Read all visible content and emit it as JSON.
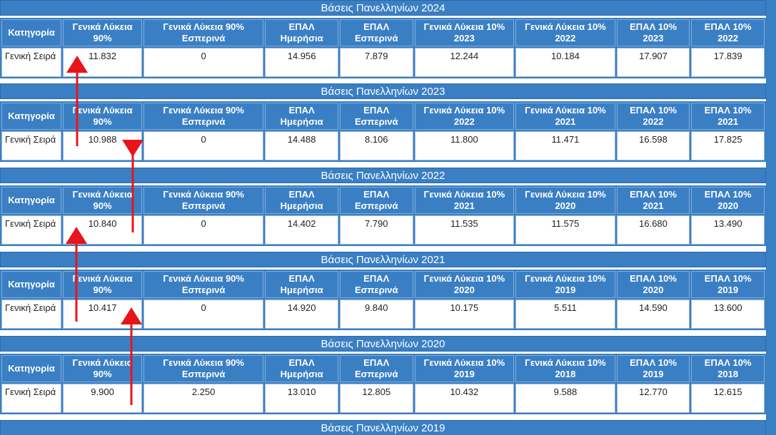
{
  "sections": [
    {
      "title": "Βάσεις Πανελληνίων 2024",
      "headers": [
        "Κατηγορία",
        "Γενικά Λύκεια 90%",
        "Γενικά Λύκεια 90% Εσπερινά",
        "ΕΠΑΛ Ημερήσια",
        "ΕΠΑΛ Εσπερινά",
        "Γενικά Λύκεια 10% 2023",
        "Γενικά Λύκεια 10% 2022",
        "ΕΠΑΛ 10% 2023",
        "ΕΠΑΛ 10% 2022"
      ],
      "row": [
        "Γενική Σειρά",
        "11.832",
        "0",
        "14.956",
        "7.879",
        "12.244",
        "10.184",
        "17.907",
        "17.839"
      ]
    },
    {
      "title": "Βάσεις Πανελληνίων 2023",
      "headers": [
        "Κατηγορία",
        "Γενικά Λύκεια 90%",
        "Γενικά Λύκεια 90% Εσπερινά",
        "ΕΠΑΛ Ημερήσια",
        "ΕΠΑΛ Εσπερινά",
        "Γενικά Λύκεια 10% 2022",
        "Γενικά Λύκεια 10% 2021",
        "ΕΠΑΛ 10% 2022",
        "ΕΠΑΛ 10% 2021"
      ],
      "row": [
        "Γενική Σειρά",
        "10.988",
        "0",
        "14.488",
        "8.106",
        "11.800",
        "11.471",
        "16.598",
        "17.825"
      ]
    },
    {
      "title": "Βάσεις Πανελληνίων 2022",
      "headers": [
        "Κατηγορία",
        "Γενικά Λύκεια 90%",
        "Γενικά Λύκεια 90% Εσπερινά",
        "ΕΠΑΛ Ημερήσια",
        "ΕΠΑΛ Εσπερινά",
        "Γενικά Λύκεια 10% 2021",
        "Γενικά Λύκεια 10% 2020",
        "ΕΠΑΛ 10% 2021",
        "ΕΠΑΛ 10% 2020"
      ],
      "row": [
        "Γενική Σειρά",
        "10.840",
        "0",
        "14.402",
        "7.790",
        "11.535",
        "11.575",
        "16.680",
        "13.490"
      ]
    },
    {
      "title": "Βάσεις Πανελληνίων 2021",
      "headers": [
        "Κατηγορία",
        "Γενικά Λύκεια 90%",
        "Γενικά Λύκεια 90% Εσπερινά",
        "ΕΠΑΛ Ημερήσια",
        "ΕΠΑΛ Εσπερινά",
        "Γενικά Λύκεια 10% 2020",
        "Γενικά Λύκεια 10% 2019",
        "ΕΠΑΛ 10% 2020",
        "ΕΠΑΛ 10% 2019"
      ],
      "row": [
        "Γενική Σειρά",
        "10.417",
        "0",
        "14.920",
        "9.840",
        "10.175",
        "5.511",
        "14.590",
        "13.600"
      ]
    },
    {
      "title": "Βάσεις Πανελληνίων 2020",
      "headers": [
        "Κατηγορία",
        "Γενικά Λύκεια 90%",
        "Γενικά Λύκεια 90% Εσπερινά",
        "ΕΠΑΛ Ημερήσια",
        "ΕΠΑΛ Εσπερινά",
        "Γενικά Λύκεια 10% 2019",
        "Γενικά Λύκεια 10% 2018",
        "ΕΠΑΛ 10% 2019",
        "ΕΠΑΛ 10% 2018"
      ],
      "row": [
        "Γενική Σειρά",
        "9.900",
        "2.250",
        "13.010",
        "12.805",
        "10.432",
        "9.588",
        "12.770",
        "12.615"
      ]
    },
    {
      "title": "Βάσεις Πανελληνίων 2019",
      "headers": [],
      "row": []
    }
  ],
  "colors": {
    "header_blue": "#3a7fc4",
    "arrow_red": "#e8141b"
  }
}
